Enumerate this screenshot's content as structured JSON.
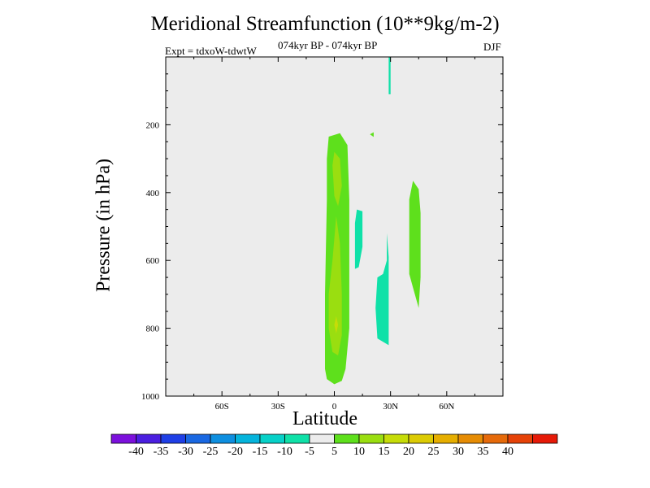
{
  "chart_data": {
    "type": "contour",
    "title": "Meridional Streamfunction (10**9kg/m-2)",
    "subtitle_left": "Expt = tdxoW-tdwtW",
    "subtitle_center": "074kyr BP - 074kyr BP",
    "subtitle_right": "DJF",
    "xlabel": "Latitude",
    "ylabel": "Pressure (in hPa)",
    "xlim": [
      -90,
      90
    ],
    "ylim": [
      1000,
      0
    ],
    "x_ticks": [
      {
        "value": -60,
        "label": "60S"
      },
      {
        "value": -30,
        "label": "30S"
      },
      {
        "value": 0,
        "label": "0"
      },
      {
        "value": 30,
        "label": "30N"
      },
      {
        "value": 60,
        "label": "60N"
      }
    ],
    "y_ticks": [
      {
        "value": 200,
        "label": "200"
      },
      {
        "value": 400,
        "label": "400"
      },
      {
        "value": 600,
        "label": "600"
      },
      {
        "value": 800,
        "label": "800"
      },
      {
        "value": 1000,
        "label": "1000"
      }
    ],
    "colorbar": {
      "colors": [
        "#7c10dc",
        "#4b1fe0",
        "#1f3fe6",
        "#1a68e2",
        "#0e8fe0",
        "#05b4dc",
        "#07d1c8",
        "#0fe1a8",
        "#ececec",
        "#5ee01c",
        "#9ade10",
        "#c6dc08",
        "#dccb04",
        "#e6ae00",
        "#e68c04",
        "#e66a0a",
        "#e64208",
        "#e61a08"
      ],
      "labels": [
        "-40",
        "-35",
        "-30",
        "-25",
        "-20",
        "-15",
        "-10",
        "-5",
        "5",
        "10",
        "15",
        "20",
        "25",
        "30",
        "35",
        "40"
      ]
    },
    "regions": [
      {
        "name": "positive-cell-equator",
        "level": 10,
        "color": "#5ee01c",
        "points": [
          [
            -3,
            235
          ],
          [
            3,
            225
          ],
          [
            7,
            260
          ],
          [
            8,
            420
          ],
          [
            8,
            600
          ],
          [
            8,
            800
          ],
          [
            6,
            920
          ],
          [
            4,
            955
          ],
          [
            0,
            965
          ],
          [
            -4,
            950
          ],
          [
            -5,
            920
          ],
          [
            -5,
            700
          ],
          [
            -4,
            420
          ],
          [
            -4,
            300
          ]
        ]
      },
      {
        "name": "inner-positive-upper",
        "level": 15,
        "color": "#9ade10",
        "points": [
          [
            0,
            280
          ],
          [
            3,
            300
          ],
          [
            4,
            380
          ],
          [
            2,
            440
          ],
          [
            0,
            410
          ],
          [
            -1,
            320
          ]
        ]
      },
      {
        "name": "inner-positive-lower",
        "level": 15,
        "color": "#9ade10",
        "points": [
          [
            1,
            470
          ],
          [
            3,
            550
          ],
          [
            4,
            700
          ],
          [
            4,
            820
          ],
          [
            2,
            880
          ],
          [
            -1,
            870
          ],
          [
            -3,
            800
          ],
          [
            -3,
            700
          ],
          [
            -1,
            600
          ]
        ]
      },
      {
        "name": "core-positive-lower",
        "level": 20,
        "color": "#c6dc08",
        "points": [
          [
            1,
            765
          ],
          [
            2,
            790
          ],
          [
            1,
            815
          ],
          [
            0,
            790
          ]
        ]
      },
      {
        "name": "positive-cell-north",
        "level": 10,
        "color": "#5ee01c",
        "points": [
          [
            42,
            365
          ],
          [
            45,
            390
          ],
          [
            46,
            460
          ],
          [
            46,
            560
          ],
          [
            46,
            650
          ],
          [
            45,
            740
          ],
          [
            42,
            680
          ],
          [
            40,
            640
          ],
          [
            40,
            520
          ],
          [
            40,
            420
          ]
        ]
      },
      {
        "name": "negative-cell-a",
        "level": -5,
        "color": "#0fe1a8",
        "points": [
          [
            12,
            450
          ],
          [
            15,
            455
          ],
          [
            15,
            560
          ],
          [
            13,
            620
          ],
          [
            11,
            625
          ],
          [
            11,
            560
          ],
          [
            11,
            490
          ]
        ]
      },
      {
        "name": "negative-cell-b",
        "level": -5,
        "color": "#0fe1a8",
        "points": [
          [
            28,
            520
          ],
          [
            29,
            590
          ],
          [
            29,
            700
          ],
          [
            29,
            850
          ],
          [
            26,
            840
          ],
          [
            23,
            830
          ],
          [
            22,
            740
          ],
          [
            23,
            650
          ],
          [
            26,
            640
          ],
          [
            28,
            600
          ]
        ]
      },
      {
        "name": "negative-top-sliver",
        "level": -5,
        "color": "#0fe1a8",
        "points": [
          [
            29,
            0
          ],
          [
            30,
            0
          ],
          [
            30,
            110
          ],
          [
            29,
            110
          ]
        ]
      },
      {
        "name": "small-positive-spot",
        "level": 10,
        "color": "#5ee01c",
        "points": [
          [
            19,
            228
          ],
          [
            21,
            222
          ],
          [
            21,
            236
          ]
        ]
      }
    ]
  }
}
